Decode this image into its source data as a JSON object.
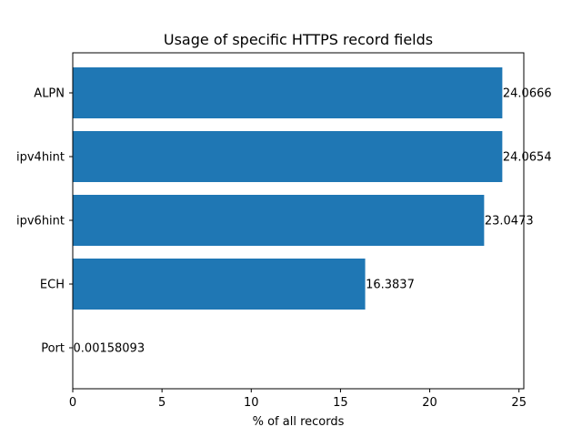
{
  "chart_data": {
    "type": "bar",
    "orientation": "horizontal",
    "title": "Usage of specific HTTPS record fields",
    "xlabel": "% of all records",
    "ylabel": "",
    "categories": [
      "ALPN",
      "ipv4hint",
      "ipv6hint",
      "ECH",
      "Port"
    ],
    "values": [
      24.0666,
      24.0654,
      23.0473,
      16.3837,
      0.00158093
    ],
    "data_labels": [
      "24.0666",
      "24.0654",
      "23.0473",
      "16.3837",
      "0.00158093"
    ],
    "xlim": [
      0,
      25.27
    ],
    "xticks": [
      0,
      5,
      10,
      15,
      20,
      25
    ],
    "xtick_labels": [
      "0",
      "5",
      "10",
      "15",
      "20",
      "25"
    ],
    "grid": false,
    "bar_color": "#1f77b4"
  }
}
